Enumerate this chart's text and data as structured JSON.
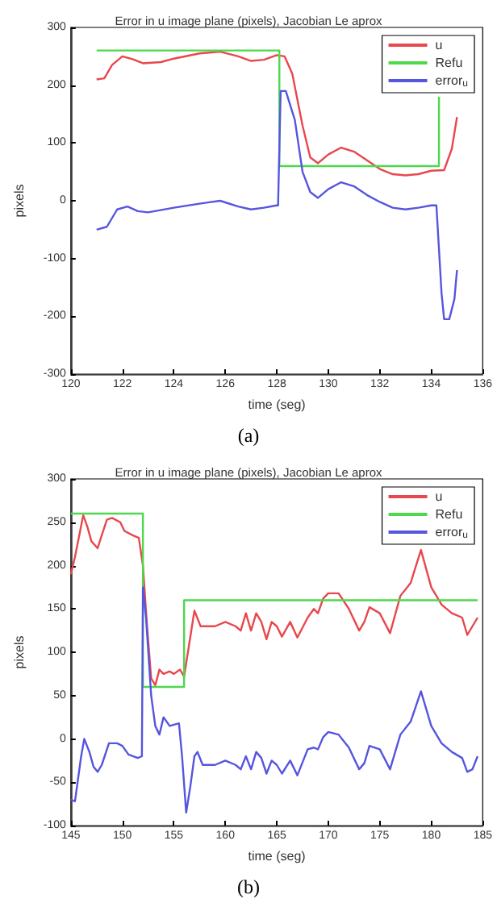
{
  "chart_data": [
    {
      "type": "line",
      "title": "Error in u image plane (pixels), Jacobian Le aprox",
      "xlabel": "time (seg)",
      "ylabel": "pixels",
      "annotations": [
        "(a)"
      ],
      "xlim": [
        120,
        136
      ],
      "xticks": [
        120,
        122,
        124,
        126,
        128,
        130,
        132,
        134,
        136
      ],
      "ylim": [
        -300,
        300
      ],
      "yticks": [
        -300,
        -200,
        -100,
        0,
        100,
        200,
        300
      ],
      "grid": false,
      "legend": "top right",
      "series": [
        {
          "name": "u",
          "color": "#e8474c",
          "x": [
            121,
            121.3,
            121.6,
            122,
            122.4,
            122.8,
            123.5,
            124,
            125,
            125.8,
            126.5,
            127,
            127.5,
            128,
            128.3,
            128.6,
            129,
            129.3,
            129.6,
            130,
            130.5,
            131,
            131.5,
            132,
            132.5,
            133,
            133.5,
            134,
            134.5,
            134.8,
            135
          ],
          "values": [
            210,
            212,
            235,
            250,
            245,
            238,
            240,
            246,
            255,
            258,
            250,
            242,
            244,
            252,
            250,
            220,
            130,
            75,
            65,
            80,
            92,
            85,
            70,
            55,
            46,
            44,
            46,
            52,
            53,
            90,
            145
          ]
        },
        {
          "name": "Refu",
          "color": "#4ed84e",
          "x": [
            121,
            128.1,
            128.1,
            134.3,
            134.3
          ],
          "values": [
            260,
            260,
            60,
            60,
            180
          ]
        },
        {
          "name": "error$_{u}$",
          "color": "#5555e0",
          "x": [
            121,
            121.4,
            121.8,
            122.2,
            122.6,
            123,
            124,
            125,
            125.8,
            126.5,
            127,
            127.5,
            128,
            128.05,
            128.15,
            128.35,
            128.7,
            129,
            129.3,
            129.6,
            130,
            130.5,
            131,
            131.5,
            132,
            132.5,
            133,
            133.5,
            134,
            134.2,
            134.4,
            134.5,
            134.7,
            134.9,
            135
          ],
          "values": [
            -50,
            -45,
            -15,
            -10,
            -18,
            -20,
            -12,
            -5,
            0,
            -10,
            -15,
            -12,
            -8,
            -8,
            190,
            190,
            140,
            50,
            15,
            5,
            20,
            32,
            25,
            10,
            -2,
            -12,
            -15,
            -12,
            -8,
            -8,
            -160,
            -205,
            -205,
            -170,
            -120
          ]
        }
      ]
    },
    {
      "type": "line",
      "title": "Error in u image plane (pixels), Jacobian Le aprox",
      "xlabel": "time (seg)",
      "ylabel": "pixels",
      "annotations": [
        "(b)"
      ],
      "xlim": [
        145,
        185
      ],
      "xticks": [
        145,
        150,
        155,
        160,
        165,
        170,
        175,
        180,
        185
      ],
      "ylim": [
        -100,
        300
      ],
      "yticks": [
        -100,
        -50,
        0,
        50,
        100,
        150,
        200,
        250,
        300
      ],
      "grid": false,
      "legend": "top right",
      "series": [
        {
          "name": "u",
          "color": "#e8474c",
          "x": [
            145,
            145.4,
            146.2,
            146.6,
            147,
            147.6,
            148,
            148.5,
            149,
            149.8,
            150.2,
            151,
            151.6,
            152,
            152.4,
            152.8,
            153.2,
            153.6,
            154,
            154.6,
            155,
            155.6,
            156,
            156.5,
            157,
            157.6,
            158,
            159,
            160,
            161,
            161.5,
            162,
            162.5,
            163,
            163.5,
            164,
            164.5,
            165,
            165.5,
            166.3,
            167,
            168,
            168.6,
            169,
            169.5,
            170,
            171,
            172,
            173,
            173.5,
            174,
            175,
            176,
            177,
            178,
            179,
            180,
            181,
            182,
            183,
            183.5,
            184,
            184.5
          ],
          "values": [
            190,
            210,
            258,
            245,
            228,
            220,
            235,
            253,
            255,
            250,
            240,
            235,
            232,
            200,
            130,
            70,
            62,
            80,
            75,
            78,
            75,
            80,
            72,
            110,
            148,
            130,
            130,
            130,
            135,
            130,
            125,
            145,
            125,
            145,
            135,
            115,
            135,
            130,
            118,
            135,
            117,
            140,
            150,
            145,
            162,
            168,
            168,
            150,
            125,
            135,
            152,
            145,
            122,
            165,
            180,
            218,
            175,
            155,
            145,
            140,
            120,
            130,
            140
          ]
        },
        {
          "name": "Refu",
          "color": "#4ed84e",
          "x": [
            145,
            152,
            152,
            156,
            156,
            184.5
          ],
          "values": [
            260,
            260,
            60,
            60,
            160,
            160
          ]
        },
        {
          "name": "error$_{u}$",
          "color": "#5555e0",
          "x": [
            145,
            145.4,
            146,
            146.3,
            146.8,
            147.2,
            147.6,
            148,
            148.7,
            149.5,
            150,
            150.6,
            151.5,
            151.9,
            152,
            152.3,
            152.8,
            153.2,
            153.6,
            154,
            154.6,
            155.5,
            155.8,
            156.2,
            156.6,
            157,
            157.3,
            157.8,
            159,
            160,
            161,
            161.5,
            162,
            162.5,
            163,
            163.5,
            164,
            164.5,
            165,
            165.5,
            166.3,
            167,
            168,
            168.6,
            169,
            169.5,
            170,
            171,
            172,
            173,
            173.5,
            174,
            175,
            176,
            177,
            178,
            179,
            180,
            181,
            182,
            183,
            183.5,
            184,
            184.5
          ],
          "values": [
            -70,
            -72,
            -20,
            0,
            -15,
            -32,
            -38,
            -30,
            -5,
            -5,
            -8,
            -18,
            -22,
            -20,
            175,
            140,
            50,
            15,
            5,
            25,
            15,
            18,
            -20,
            -85,
            -55,
            -20,
            -15,
            -30,
            -30,
            -25,
            -30,
            -35,
            -20,
            -35,
            -15,
            -22,
            -40,
            -25,
            -30,
            -40,
            -25,
            -42,
            -12,
            -10,
            -12,
            2,
            8,
            5,
            -10,
            -35,
            -28,
            -8,
            -12,
            -35,
            5,
            20,
            55,
            15,
            -5,
            -15,
            -22,
            -38,
            -35,
            -20
          ]
        }
      ]
    }
  ]
}
